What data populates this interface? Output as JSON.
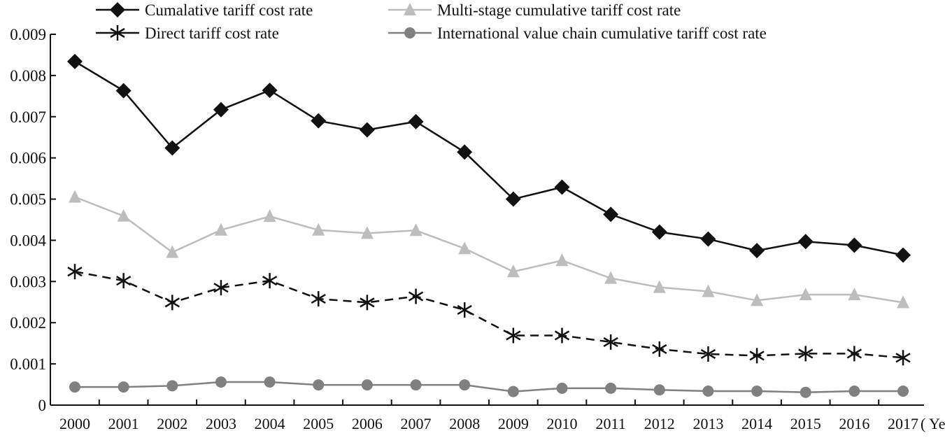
{
  "chart_data": {
    "type": "line",
    "xlabel": "( Year )",
    "ylabel": "",
    "ylim": [
      0,
      0.009
    ],
    "yticks": [
      "0",
      "0.001",
      "0.002",
      "0.003",
      "0.004",
      "0.005",
      "0.006",
      "0.007",
      "0.008",
      "0.009"
    ],
    "grid": false,
    "legend_position": "top",
    "categories": [
      "2000",
      "2001",
      "2002",
      "2003",
      "2004",
      "2005",
      "2006",
      "2007",
      "2008",
      "2009",
      "2010",
      "2011",
      "2012",
      "2013",
      "2014",
      "2015",
      "2016",
      "2017"
    ],
    "series": [
      {
        "name": "Cumalative tariff cost rate",
        "marker": "diamond",
        "color": "#111111",
        "dash": "solid",
        "values": [
          0.00834,
          0.00763,
          0.00624,
          0.00717,
          0.00764,
          0.0069,
          0.00668,
          0.00688,
          0.00614,
          0.005,
          0.00529,
          0.00463,
          0.0042,
          0.00403,
          0.00375,
          0.00397,
          0.00388,
          0.00364
        ]
      },
      {
        "name": "Multi-stage cumulative tariff cost rate",
        "marker": "triangle",
        "color": "#bdbdbd",
        "dash": "solid",
        "values": [
          0.00505,
          0.00459,
          0.00371,
          0.00425,
          0.00458,
          0.00425,
          0.00417,
          0.00424,
          0.0038,
          0.00324,
          0.00351,
          0.00308,
          0.00286,
          0.00276,
          0.00254,
          0.00268,
          0.00268,
          0.00249
        ]
      },
      {
        "name": "Direct tariff cost rate",
        "marker": "asterisk",
        "color": "#111111",
        "dash": "dashed",
        "values": [
          0.00324,
          0.00302,
          0.00249,
          0.00285,
          0.00302,
          0.00258,
          0.00249,
          0.00264,
          0.00231,
          0.00169,
          0.00169,
          0.00153,
          0.00136,
          0.00124,
          0.0012,
          0.00125,
          0.00125,
          0.00115
        ]
      },
      {
        "name": "International value chain cumulative tariff cost rate",
        "marker": "circle",
        "color": "#808080",
        "dash": "solid",
        "values": [
          0.00044,
          0.00044,
          0.00047,
          0.00056,
          0.00056,
          0.00049,
          0.00049,
          0.00049,
          0.00049,
          0.00033,
          0.00041,
          0.00041,
          0.00037,
          0.00034,
          0.00034,
          0.00031,
          0.00034,
          0.00034
        ]
      }
    ]
  }
}
